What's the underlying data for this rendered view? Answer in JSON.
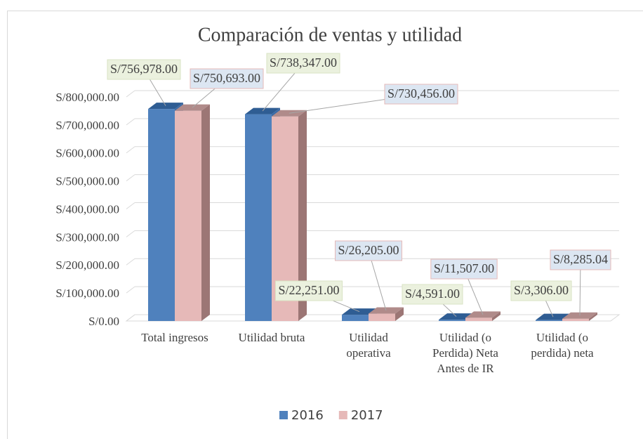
{
  "chart_data": {
    "type": "bar3d",
    "title": "Comparación de ventas y utilidad",
    "categories": [
      "Total ingresos",
      "Utilidad bruta",
      "Utilidad operativa",
      "Utilidad (o Perdida) Neta Antes de IR",
      "Utilidad (o perdida) neta"
    ],
    "series": [
      {
        "name": "2016",
        "color": "#4f81bd",
        "values": [
          756978,
          738347,
          22251,
          4591,
          3306
        ],
        "value_labels": [
          "S/756,978.00",
          "S/738,347.00",
          "S/22,251.00",
          "S/4,591.00",
          "S/3,306.00"
        ]
      },
      {
        "name": "2017",
        "color": "#e6b9b8",
        "values": [
          750693,
          730456,
          26205,
          11507,
          8285.04
        ],
        "value_labels": [
          "S/750,693.00",
          "S/730,456.00",
          "S/26,205.00",
          "S/11,507.00",
          "S/8,285.04"
        ]
      }
    ],
    "ylim": [
      0,
      800000
    ],
    "yticks": [
      {
        "value": 0,
        "label": "S/0.00"
      },
      {
        "value": 100000,
        "label": "S/100,000.00"
      },
      {
        "value": 200000,
        "label": "S/200,000.00"
      },
      {
        "value": 300000,
        "label": "S/300,000.00"
      },
      {
        "value": 400000,
        "label": "S/400,000.00"
      },
      {
        "value": 500000,
        "label": "S/500,000.00"
      },
      {
        "value": 600000,
        "label": "S/600,000.00"
      },
      {
        "value": 700000,
        "label": "S/700,000.00"
      },
      {
        "value": 800000,
        "label": "S/800,000.00"
      }
    ],
    "grid": true,
    "legend": "bottom"
  }
}
